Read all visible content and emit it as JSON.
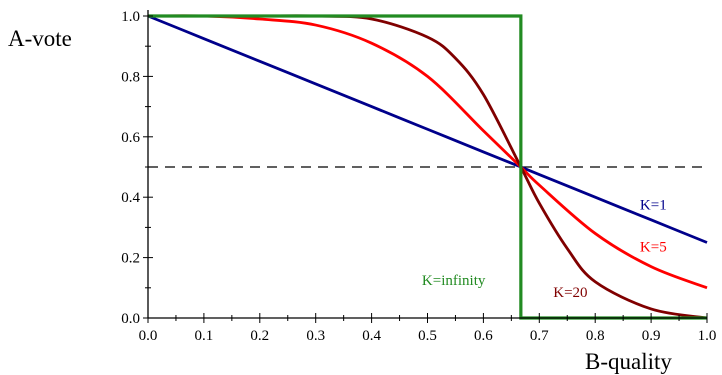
{
  "chart_data": {
    "type": "line",
    "title": "",
    "xlabel": "B-quality",
    "ylabel": "A-vote",
    "xlim": [
      0,
      1
    ],
    "ylim": [
      0,
      1
    ],
    "x_ticks": [
      "0.0",
      "0.1",
      "0.2",
      "0.3",
      "0.4",
      "0.5",
      "0.6",
      "0.7",
      "0.8",
      "0.9",
      "1.0"
    ],
    "y_ticks": [
      "0.0",
      "0.2",
      "0.4",
      "0.6",
      "0.8",
      "1.0"
    ],
    "grid": false,
    "legend": "none",
    "reference_line": {
      "y": 0.5,
      "style": "dashed",
      "color": "#000000"
    },
    "series": [
      {
        "name": "K=1",
        "color": "#00008B",
        "x": [
          0.0,
          0.1,
          0.2,
          0.3,
          0.4,
          0.5,
          0.6,
          0.667,
          0.7,
          0.8,
          0.9,
          1.0
        ],
        "y": [
          1.0,
          0.925,
          0.85,
          0.775,
          0.7,
          0.625,
          0.55,
          0.5,
          0.475,
          0.4,
          0.325,
          0.25
        ]
      },
      {
        "name": "K=5",
        "color": "#FF0000",
        "x": [
          0.0,
          0.1,
          0.2,
          0.3,
          0.4,
          0.5,
          0.6,
          0.667,
          0.7,
          0.8,
          0.9,
          1.0
        ],
        "y": [
          1.0,
          1.0,
          0.99,
          0.97,
          0.91,
          0.8,
          0.62,
          0.5,
          0.44,
          0.28,
          0.17,
          0.1
        ]
      },
      {
        "name": "K=20",
        "color": "#800000",
        "x": [
          0.0,
          0.1,
          0.2,
          0.3,
          0.4,
          0.5,
          0.55,
          0.6,
          0.667,
          0.7,
          0.75,
          0.8,
          0.9,
          1.0
        ],
        "y": [
          1.0,
          1.0,
          1.0,
          1.0,
          0.99,
          0.93,
          0.86,
          0.74,
          0.5,
          0.38,
          0.23,
          0.12,
          0.03,
          0.0
        ]
      },
      {
        "name": "K=infinity",
        "color": "#228B22",
        "x": [
          0.0,
          0.667,
          0.667,
          1.0
        ],
        "y": [
          1.0,
          1.0,
          0.0,
          0.0
        ]
      }
    ],
    "annotations": [
      {
        "text": "K=1",
        "color": "#00008B",
        "x": 0.88,
        "y": 0.36
      },
      {
        "text": "K=5",
        "color": "#FF0000",
        "x": 0.88,
        "y": 0.22
      },
      {
        "text": "K=20",
        "color": "#800000",
        "x": 0.725,
        "y": 0.07
      },
      {
        "text": "K=infinity",
        "color": "#228B22",
        "x": 0.49,
        "y": 0.11
      }
    ]
  }
}
